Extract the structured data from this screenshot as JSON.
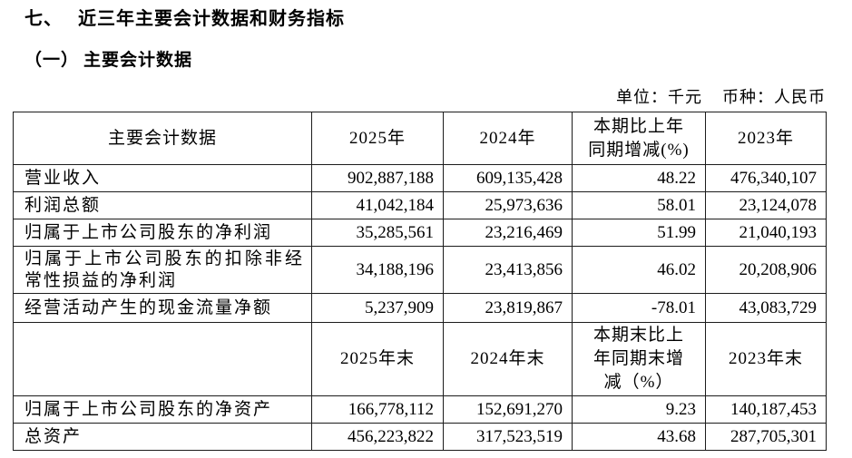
{
  "page": {
    "section_number": "七、",
    "section_title": "近三年主要会计数据和财务指标",
    "subsection_number": "（一）",
    "subsection_title": "主要会计数据",
    "unit_label": "单位：千元",
    "currency_label": "币种：人民币"
  },
  "table": {
    "header_period": {
      "metric": "主要会计数据",
      "y2025": "2025年",
      "y2024": "2024年",
      "pct": "本期比上年\n同期增减(%)",
      "y2023": "2023年"
    },
    "rows_period": [
      {
        "label": "营业收入",
        "values": [
          "902,887,188",
          "609,135,428",
          "48.22",
          "476,340,107"
        ]
      },
      {
        "label": "利润总额",
        "values": [
          "41,042,184",
          "25,973,636",
          "58.01",
          "23,124,078"
        ]
      },
      {
        "label": "归属于上市公司股东的净利润",
        "values": [
          "35,285,561",
          "23,216,469",
          "51.99",
          "21,040,193"
        ]
      },
      {
        "label": "归属于上市公司股东的扣除非经常性损益的净利润",
        "values": [
          "34,188,196",
          "23,413,856",
          "46.02",
          "20,208,906"
        ]
      },
      {
        "label": "经营活动产生的现金流量净额",
        "values": [
          "5,237,909",
          "23,819,867",
          "-78.01",
          "43,083,729"
        ]
      }
    ],
    "header_period_end": {
      "metric": "",
      "y2025": "2025年末",
      "y2024": "2024年末",
      "pct": "本期末比上\n年同期末增\n减（%）",
      "y2023": "2023年末"
    },
    "rows_period_end": [
      {
        "label": "归属于上市公司股东的净资产",
        "values": [
          "166,778,112",
          "152,691,270",
          "9.23",
          "140,187,453"
        ]
      },
      {
        "label": "总资产",
        "values": [
          "456,223,822",
          "317,523,519",
          "43.68",
          "287,705,301"
        ]
      }
    ]
  }
}
